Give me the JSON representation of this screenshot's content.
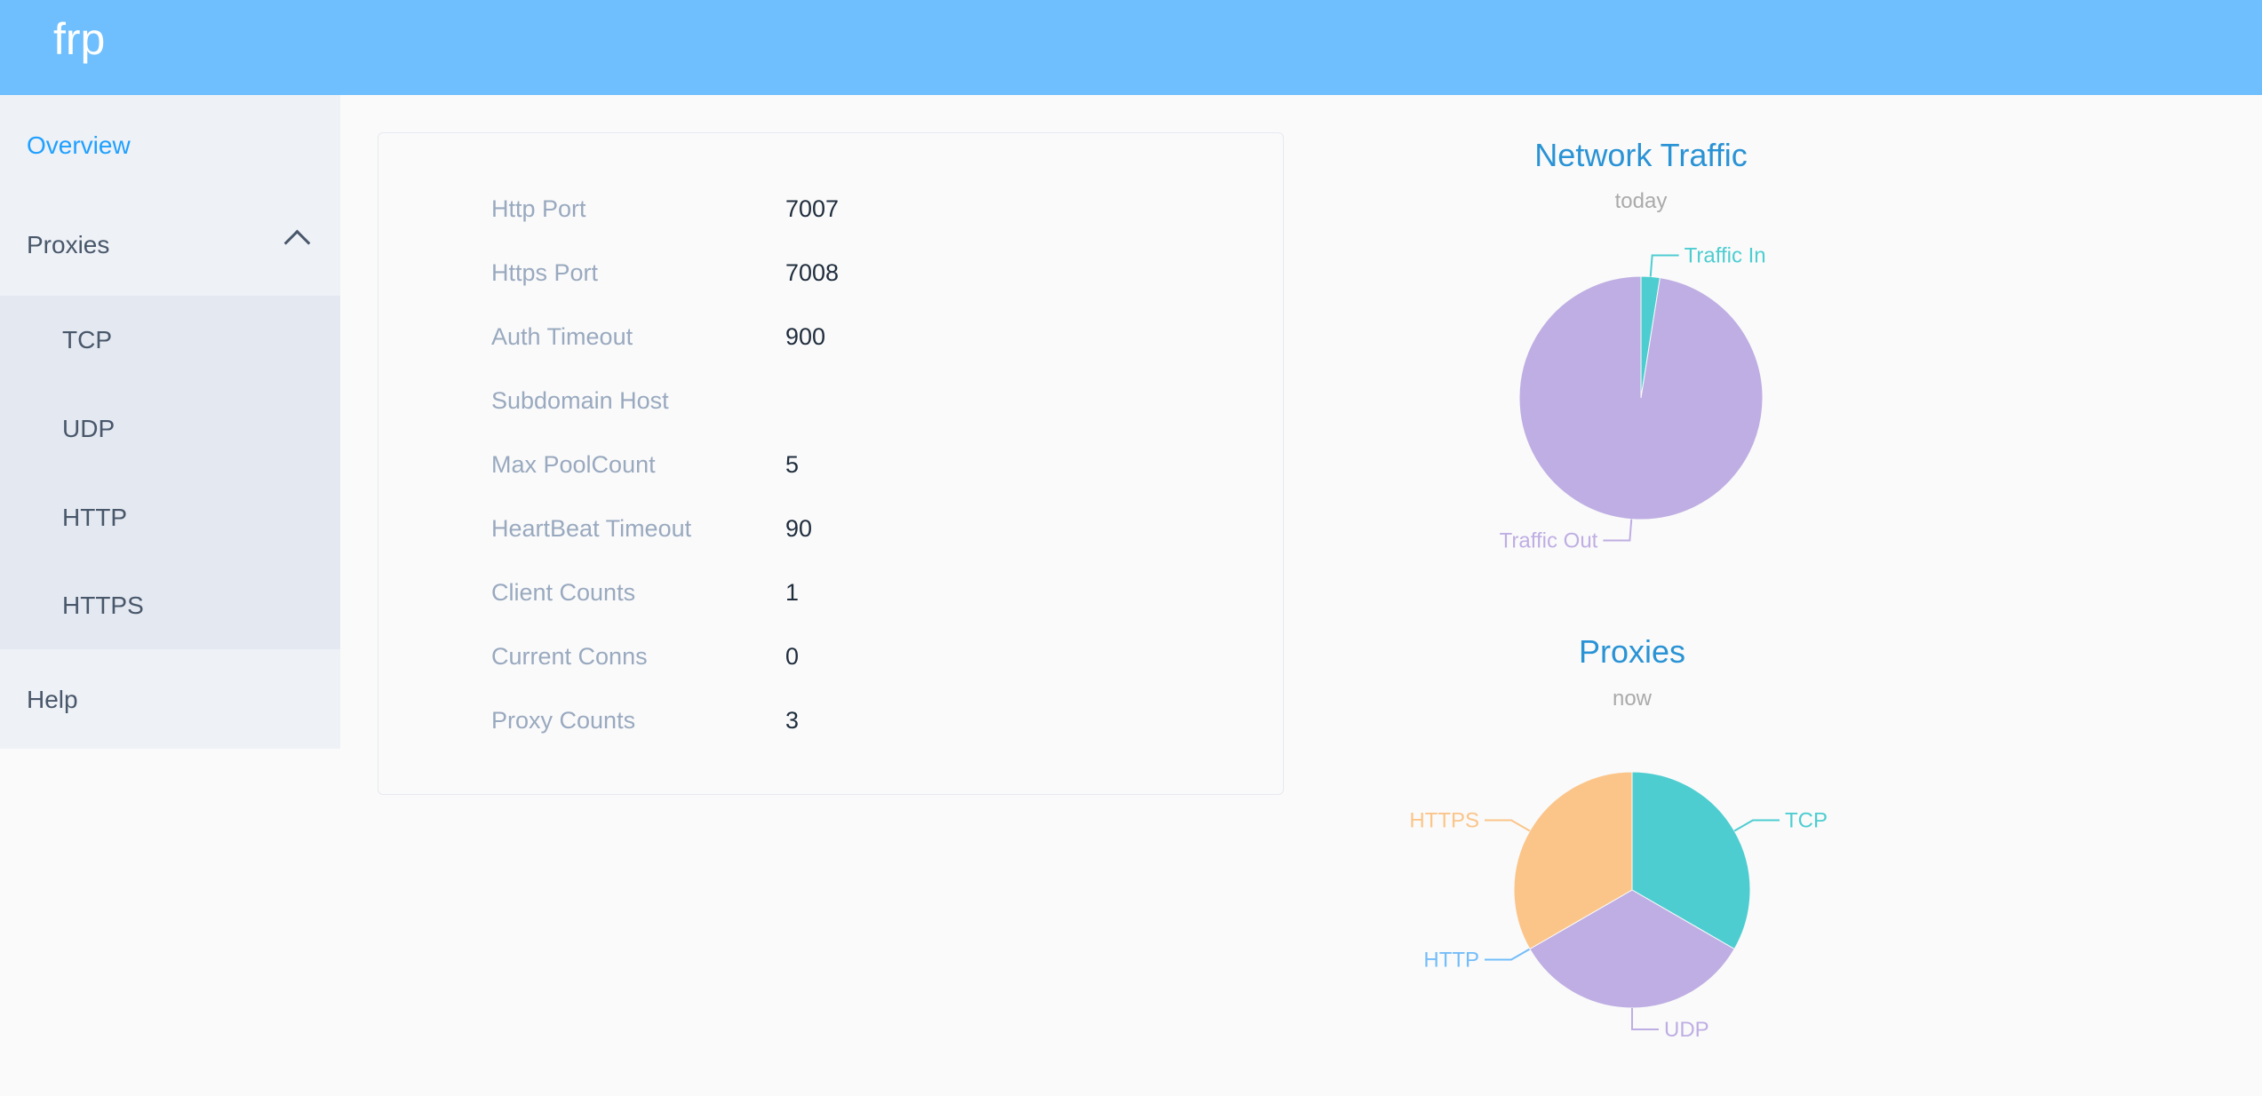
{
  "header": {
    "brand": "frp"
  },
  "sidebar": {
    "overview": "Overview",
    "proxies": "Proxies",
    "sub_items": [
      "TCP",
      "UDP",
      "HTTP",
      "HTTPS"
    ],
    "help": "Help"
  },
  "server_info": [
    {
      "label": "Http Port",
      "value": "7007"
    },
    {
      "label": "Https Port",
      "value": "7008"
    },
    {
      "label": "Auth Timeout",
      "value": "900"
    },
    {
      "label": "Subdomain Host",
      "value": ""
    },
    {
      "label": "Max PoolCount",
      "value": "5"
    },
    {
      "label": "HeartBeat Timeout",
      "value": "90"
    },
    {
      "label": "Client Counts",
      "value": "1"
    },
    {
      "label": "Current Conns",
      "value": "0"
    },
    {
      "label": "Proxy Counts",
      "value": "3"
    }
  ],
  "colors": {
    "header": "#6fbffe",
    "accent": "#20a0ff",
    "title": "#2a93d5"
  },
  "chart_data": [
    {
      "type": "pie",
      "title": "Network Traffic",
      "subtitle": "today",
      "categories": [
        "Traffic In",
        "Traffic Out"
      ],
      "values": [
        2.5,
        97.5
      ],
      "colors": [
        "#4ecdd1",
        "#bfaee3"
      ]
    },
    {
      "type": "pie",
      "title": "Proxies",
      "subtitle": "now",
      "categories": [
        "TCP",
        "UDP",
        "HTTP",
        "HTTPS"
      ],
      "values": [
        1,
        1,
        0,
        1
      ],
      "colors": [
        "#4ecdd1",
        "#bfaee3",
        "#73bdf9",
        "#fbc58a"
      ]
    }
  ]
}
